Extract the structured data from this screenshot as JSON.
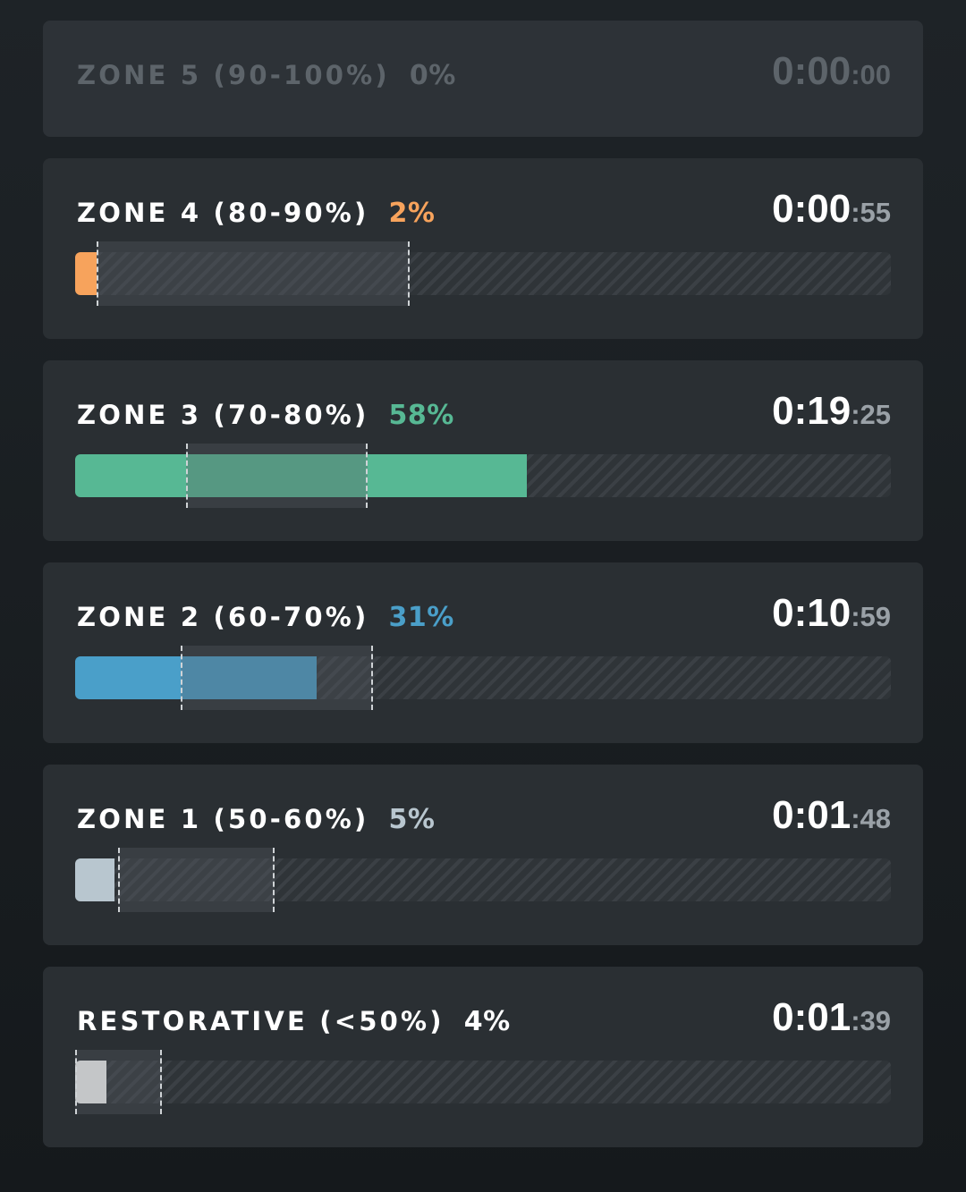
{
  "zones": [
    {
      "label": "ZONE 5 (90-100%)",
      "percent_label": "0%",
      "percent": 0,
      "time_main": "0:00",
      "time_sec": ":00",
      "color": "#5d646a",
      "active": false
    },
    {
      "label": "ZONE 4 (80-90%)",
      "percent_label": "2%",
      "percent": 2,
      "time_main": "0:00",
      "time_sec": ":55",
      "color": "#f7a35c",
      "active": true
    },
    {
      "label": "ZONE 3 (70-80%)",
      "percent_label": "58%",
      "percent": 58,
      "time_main": "0:19",
      "time_sec": ":25",
      "color": "#57b894",
      "active": true
    },
    {
      "label": "ZONE 2 (60-70%)",
      "percent_label": "31%",
      "percent": 31,
      "time_main": "0:10",
      "time_sec": ":59",
      "color": "#4a9fc9",
      "active": true
    },
    {
      "label": "ZONE 1 (50-60%)",
      "percent_label": "5%",
      "percent": 5,
      "time_main": "0:01",
      "time_sec": ":48",
      "color": "#b8c6cf",
      "active": true
    },
    {
      "label": "RESTORATIVE (<50%)",
      "percent_label": "4%",
      "percent": 4,
      "time_main": "0:01",
      "time_sec": ":39",
      "color": "#ffffff",
      "active": true
    }
  ]
}
